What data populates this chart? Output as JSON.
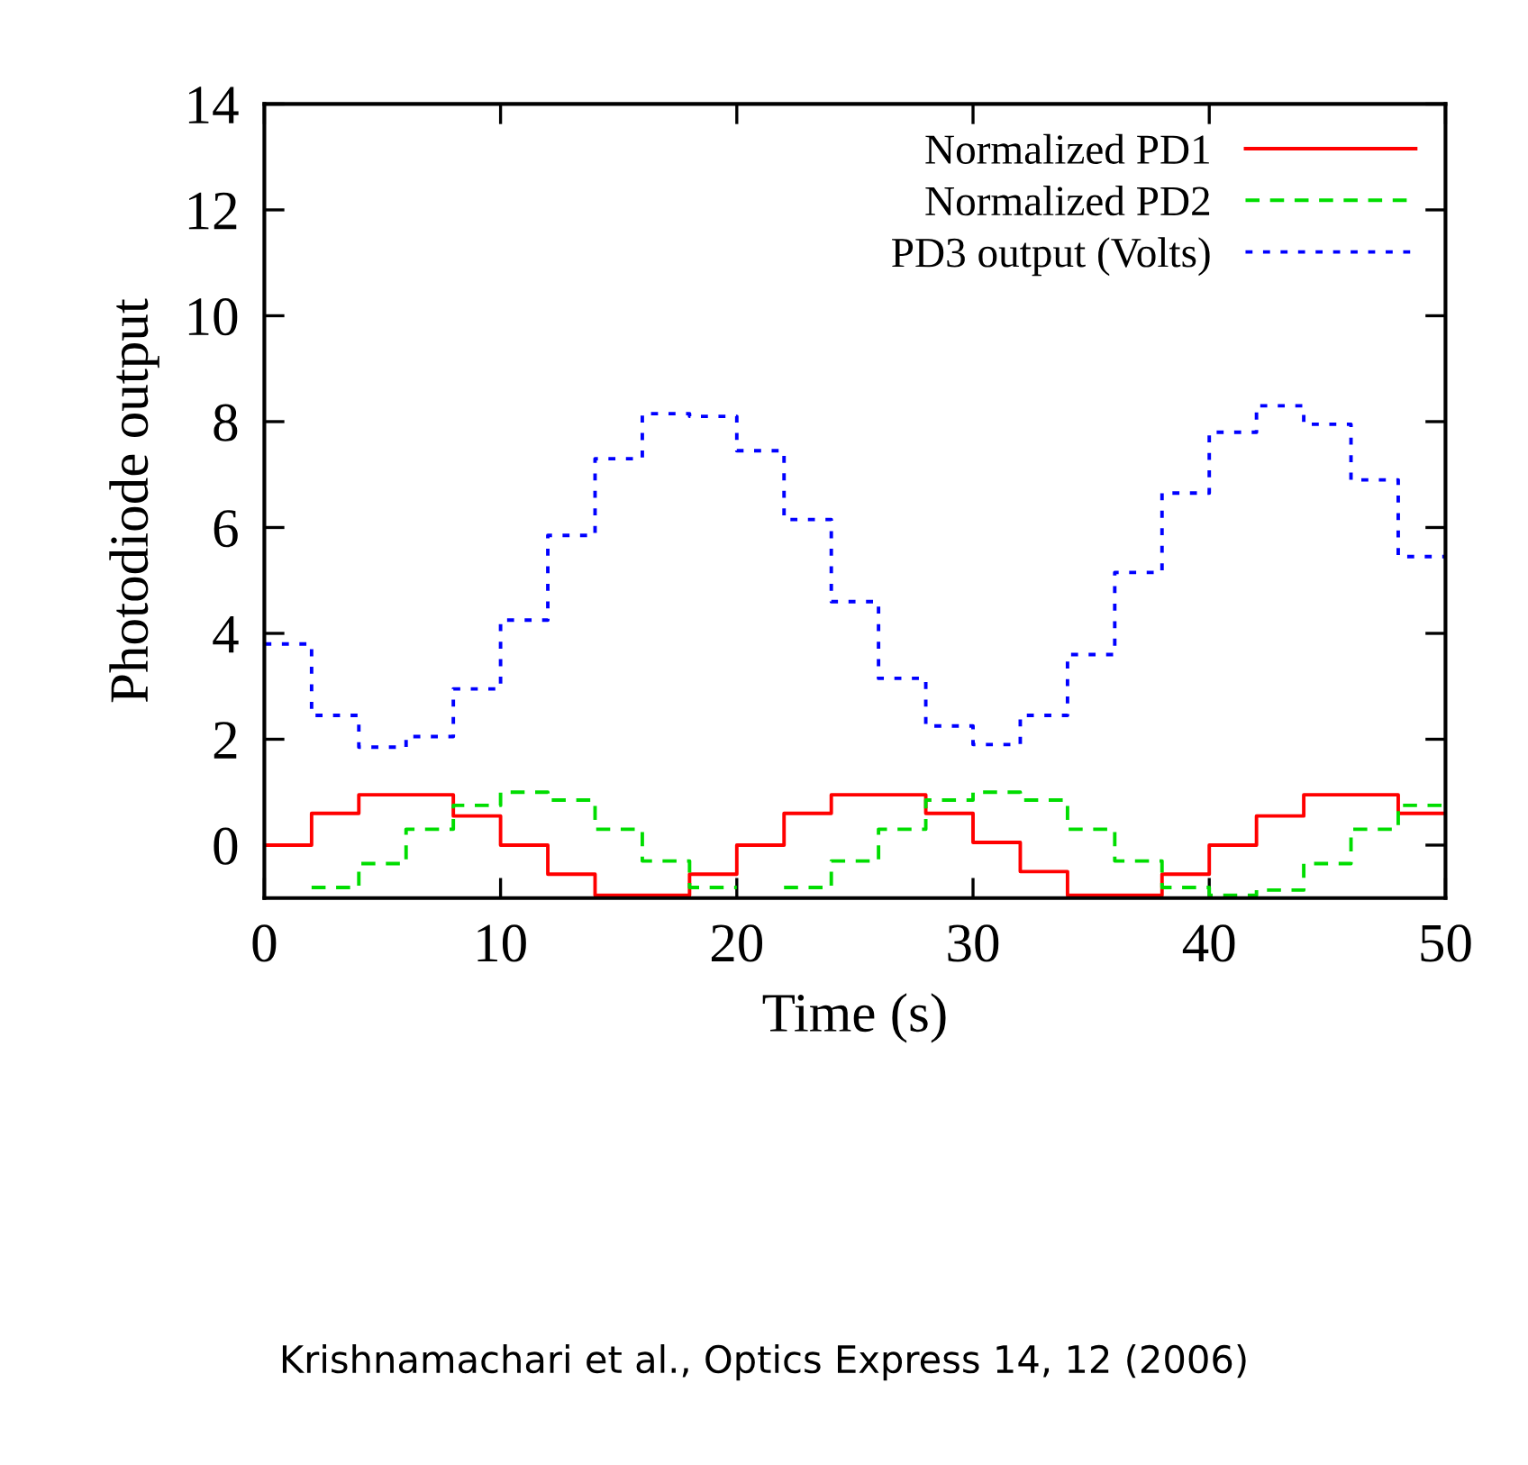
{
  "chart_data": {
    "type": "step",
    "xlabel": "Time (s)",
    "ylabel": "Photodiode output",
    "x": [
      0,
      2,
      4,
      6,
      8,
      10,
      12,
      14,
      16,
      18,
      20,
      22,
      24,
      26,
      28,
      30,
      32,
      34,
      36,
      38,
      40,
      42,
      44,
      46,
      48,
      50
    ],
    "series": [
      {
        "name": "Normalized PD1",
        "color": "#ff0000",
        "line_style": "solid",
        "values": [
          0.0,
          0.6,
          0.95,
          0.95,
          0.55,
          0.0,
          -0.55,
          -0.95,
          -0.95,
          -0.55,
          0.0,
          0.6,
          0.95,
          0.95,
          0.6,
          0.05,
          -0.5,
          -0.95,
          -0.95,
          -0.55,
          0.0,
          0.55,
          0.95,
          0.95,
          0.6,
          0.6
        ]
      },
      {
        "name": "Normalized PD2",
        "color": "#00dd00",
        "line_style": "dashed",
        "values": [
          null,
          -0.8,
          -0.35,
          0.3,
          0.75,
          1.0,
          0.85,
          0.3,
          -0.3,
          -0.8,
          null,
          -0.8,
          -0.3,
          0.3,
          0.85,
          1.0,
          0.85,
          0.3,
          -0.3,
          -0.8,
          -0.95,
          -0.85,
          -0.35,
          0.3,
          0.75,
          0.75
        ]
      },
      {
        "name": "PD3 output (Volts)",
        "color": "#0000ff",
        "line_style": "dotted",
        "values": [
          3.8,
          2.45,
          1.85,
          2.05,
          2.95,
          4.25,
          5.85,
          7.3,
          8.15,
          8.1,
          7.45,
          6.15,
          4.6,
          3.15,
          2.25,
          1.9,
          2.45,
          3.6,
          5.15,
          6.65,
          7.8,
          8.3,
          7.95,
          6.9,
          5.45,
          5.45
        ]
      }
    ],
    "xlim": [
      0,
      50
    ],
    "ylim": [
      -1,
      14
    ],
    "xticks": [
      0,
      10,
      20,
      30,
      40,
      50
    ],
    "yticks": [
      0,
      2,
      4,
      6,
      8,
      10,
      12,
      14
    ],
    "grid": false,
    "legend": "top right",
    "annotations": [
      "Krishnamachari et al., Optics Express 14, 12 (2006)"
    ]
  }
}
